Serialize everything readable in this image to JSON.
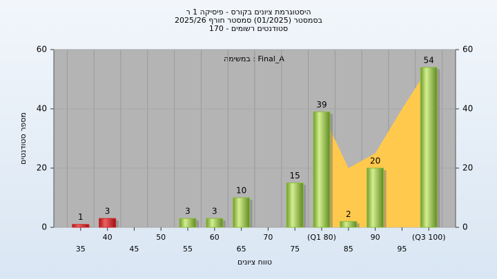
{
  "chart_data": {
    "type": "bar",
    "title": "היסטוגרמת ציונים בקורס - פיסיקה 1 ר",
    "subtitle": "בסמסטר  (01/2025)  סמסטר חורף 2025/26",
    "subtitle2": "סטודנטים רשומים - 170",
    "annotation": "במשימה : Final_A",
    "x_label": "טווח ציונים",
    "y_label": "מספר סטודנטים",
    "categories": [
      "35",
      "40",
      "45",
      "50",
      "55",
      "60",
      "65",
      "70",
      "75",
      "(Q1 80)",
      "85",
      "90",
      "95",
      "(Q3 100)"
    ],
    "values": [
      1,
      3,
      0,
      0,
      3,
      3,
      10,
      0,
      15,
      39,
      2,
      20,
      0,
      54
    ],
    "colors": [
      "#d42a2a",
      "#d42a2a",
      "#8bbb3c",
      "#8bbb3c",
      "#8bbb3c",
      "#8bbb3c",
      "#8bbb3c",
      "#8bbb3c",
      "#8bbb3c",
      "#8bbb3c",
      "#8bbb3c",
      "#8bbb3c",
      "#8bbb3c",
      "#8bbb3c"
    ],
    "area": {
      "color": "#ffc94d",
      "values": [
        null,
        null,
        null,
        null,
        null,
        null,
        null,
        null,
        null,
        39,
        20,
        25,
        40,
        54
      ]
    },
    "ylim": [
      0,
      60
    ],
    "yticks": [
      0,
      20,
      40,
      60
    ],
    "y2lim": [
      0,
      60
    ],
    "y2ticks": [
      0,
      20,
      40,
      60
    ],
    "grid": true
  }
}
